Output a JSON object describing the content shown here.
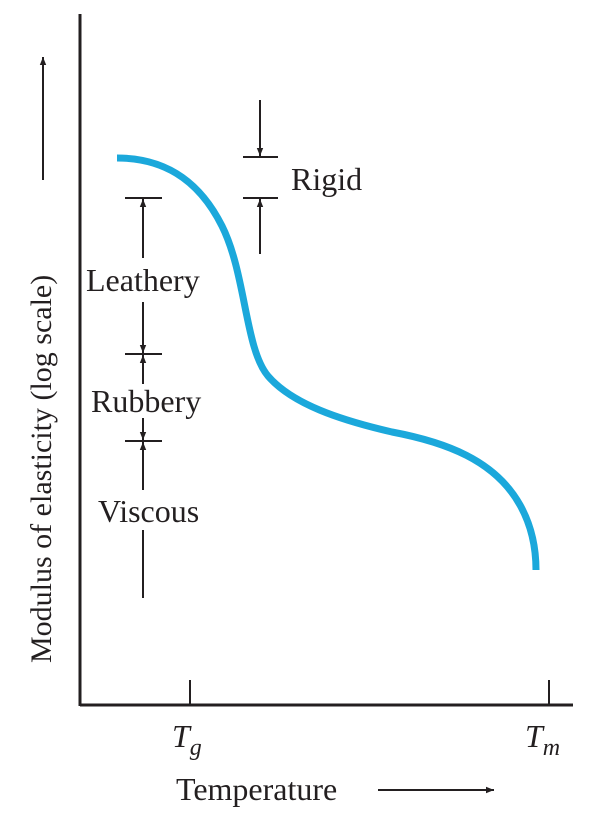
{
  "chart_data": {
    "type": "line",
    "title": "",
    "xlabel": "Temperature",
    "ylabel": "Modulus of elasticity (log scale)",
    "y_scale": "log",
    "x_ticks": [
      {
        "main": "T",
        "sub": "g"
      },
      {
        "main": "T",
        "sub": "m"
      }
    ],
    "regions": [
      "Rigid",
      "Leathery",
      "Rubbery",
      "Viscous"
    ],
    "series": [
      {
        "color": "#1ba8db",
        "shape": "Modulus decreases with temperature: a high glassy plateau, a steep drop just above Tg, a rubbery plateau, then a fall toward Tm"
      }
    ],
    "grid": false,
    "legend": "none"
  },
  "colors": {
    "curve": "#1ba8db",
    "axis": "#231f20",
    "text": "#231f20"
  }
}
